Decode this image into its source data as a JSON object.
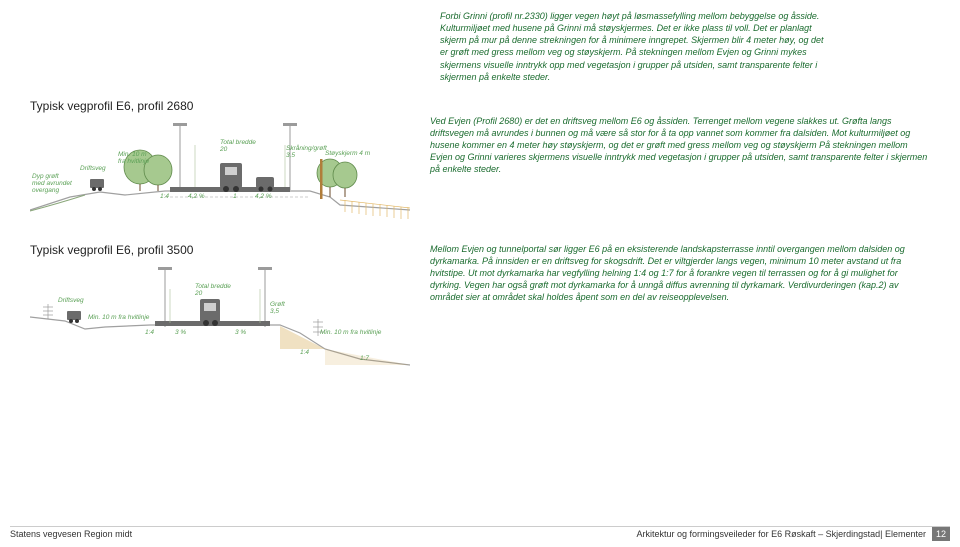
{
  "top_paragraph": "Forbi Grinni (profil nr.2330) ligger vegen høyt på løsmassefylling mellom bebyggelse og åsside. Kulturmiljøet med husene på Grinni må støyskjermes. Det er ikke plass til voll. Det er planlagt skjerm på mur på denne strekningen for å minimere inngrepet. Skjermen blir 4 meter høy, og det er grøft med gress mellom veg og støyskjerm. På stekningen mellom Evjen og Grinni mykes skjermens visuelle inntrykk opp med vegetasjon i grupper på utsiden, samt transparente felter i skjermen på enkelte steder.",
  "section1": {
    "title": "Typisk vegprofil E6, profil 2680",
    "desc": "Ved Evjen (Profil 2680) er det en driftsveg mellom E6 og åssiden. Terrenget mellom vegene slakkes ut. Grøfta langs driftsvegen må avrundes i bunnen og må være så stor for å ta opp vannet som kommer fra dalsiden. Mot kulturmiljøet og husene kommer en 4 meter høy støyskjerm, og det er grøft med gress mellom veg og støyskjerm På stekningen mellom Evjen og Grinni varieres skjermens visuelle inntrykk med vegetasjon i grupper på utsiden, samt transparente felter i skjermen på enkelte steder.",
    "diagram": {
      "labels": {
        "dyp_groft": "Dyp grøft\nmed avrundet\novergang",
        "driftsveg": "Driftsveg",
        "min10": "Min. 10 m\nfra hvitlinje",
        "total": "Total bredde\n20",
        "skraning": "Skråning/grøft\n3,5",
        "stoyskjerm": "Støyskjerm 4 m",
        "slope1": "1:4",
        "slope2": "4,2 %",
        "one": "1",
        "slope3": "4,2 %"
      },
      "colors": {
        "ground": "#a0a0a0",
        "road": "#6b6b6b",
        "tree_fill": "#a6c98f",
        "tree_stroke": "#5f8a4b",
        "bush_fill": "#b8d19a",
        "vehicle": "#6b6b6b",
        "pole": "#9b9b9b",
        "screen": "#b07d3a",
        "fence": "#e2b96a",
        "label": "#5aa055",
        "slope_line": "#7a9b6e"
      }
    }
  },
  "section2": {
    "title": "Typisk vegprofil E6, profil 3500",
    "desc": "Mellom Evjen og tunnelportal sør ligger E6 på en eksisterende landskapsterrasse inntil overgangen mellom dalsiden og dyrkamarka. På innsiden er en driftsveg for skogsdrift. Det er viltgjerder langs vegen, minimum 10 meter avstand ut fra hvitstipe. Ut mot dyrkamarka har vegfylling helning 1:4 og 1:7 for å forankre vegen til terrassen og for å gi mulighet for dyrking. Vegen har også grøft mot dyrkamarka for å unngå diffus avrenning til dyrkamark. Verdivurderingen (kap.2) av området sier at området skal holdes åpent som en del av reiseopplevelsen.",
    "diagram": {
      "labels": {
        "driftsveg": "Driftsveg",
        "min10": "Min. 10 m fra hvitlinje",
        "total": "Total bredde\n20",
        "groft": "Grøft\n3,5",
        "min10r": "Min. 10 m fra hvitlinje",
        "slope_l14": "1:4",
        "slope_3l": "3 %",
        "slope_3r": "3 %",
        "slope_r14": "1:4",
        "slope_r17": "1:7"
      },
      "colors": {
        "ground": "#a0a0a0",
        "road": "#6b6b6b",
        "vehicle": "#6b6b6b",
        "pole": "#9b9b9b",
        "fence": "#8a8a8a",
        "label": "#5aa055",
        "slope_fill": "#d4a94f"
      }
    }
  },
  "footer": {
    "left": "Statens vegvesen Region midt",
    "right": "Arkitektur og formingsveileder for E6 Røskaft – Skjerdingstad| Elementer",
    "page": "12"
  }
}
